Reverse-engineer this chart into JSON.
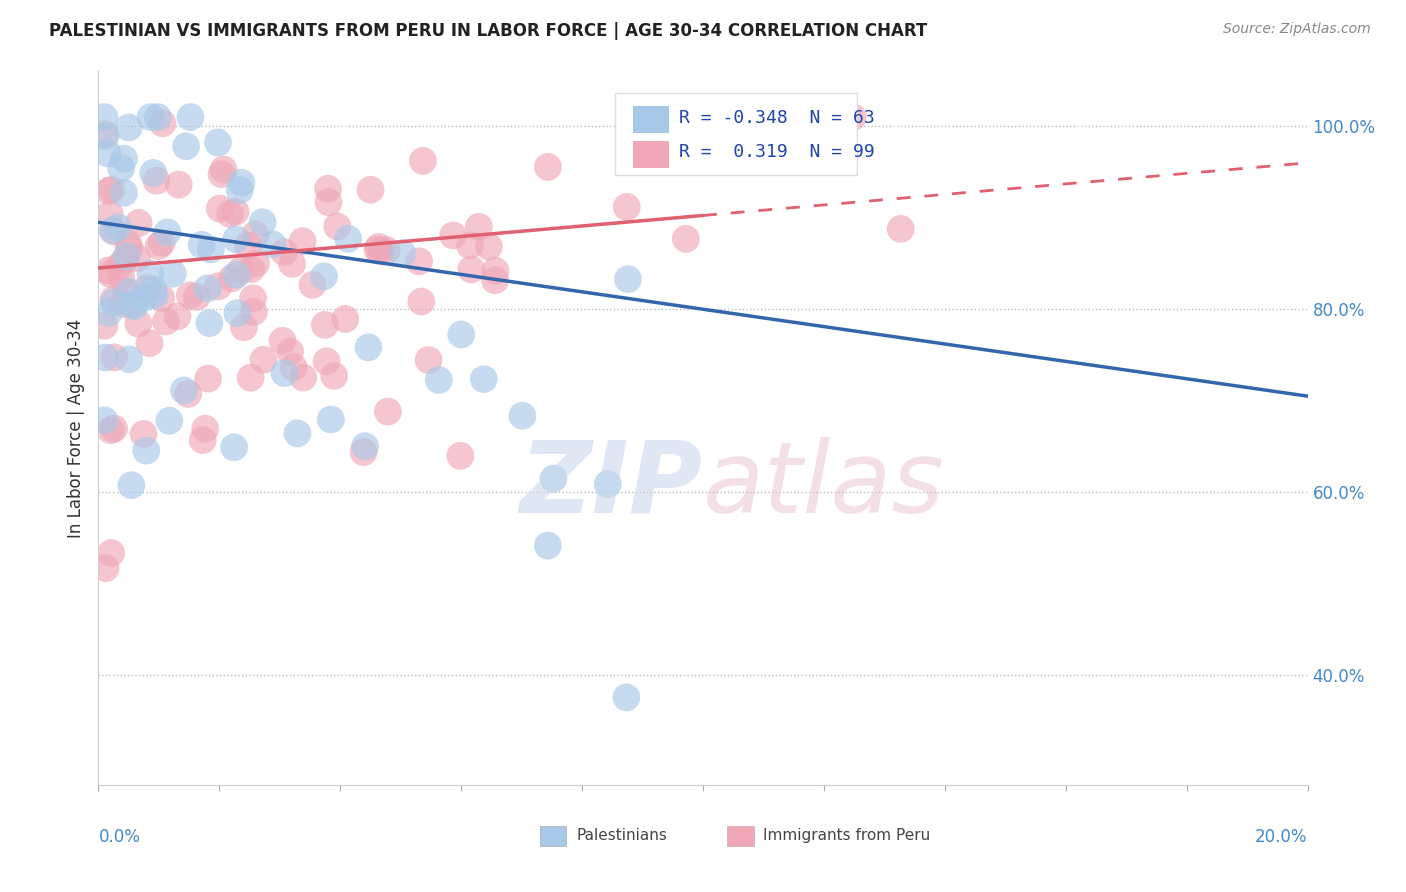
{
  "title": "PALESTINIAN VS IMMIGRANTS FROM PERU IN LABOR FORCE | AGE 30-34 CORRELATION CHART",
  "source": "Source: ZipAtlas.com",
  "ylabel": "In Labor Force | Age 30-34",
  "xmin": 0.0,
  "xmax": 0.2,
  "ymin": 0.28,
  "ymax": 1.06,
  "yticks": [
    0.4,
    0.6,
    0.8,
    1.0
  ],
  "ytick_labels": [
    "40.0%",
    "60.0%",
    "80.0%",
    "100.0%"
  ],
  "palestinians_color": "#a8c8e8",
  "peru_color": "#f0a8b8",
  "trend_blue_color": "#3366aa",
  "trend_pink_color": "#e06070",
  "R_palestinians": -0.348,
  "N_palestinians": 63,
  "R_peru": 0.319,
  "N_peru": 99,
  "legend_palestinians": "Palestinians",
  "legend_peru": "Immigrants from Peru",
  "blue_trend_x0": 0.0,
  "blue_trend_y0": 0.895,
  "blue_trend_x1": 0.2,
  "blue_trend_y1": 0.705,
  "pink_trend_x0": 0.0,
  "pink_trend_y0": 0.845,
  "pink_trend_x1": 0.2,
  "pink_trend_y1": 0.96
}
